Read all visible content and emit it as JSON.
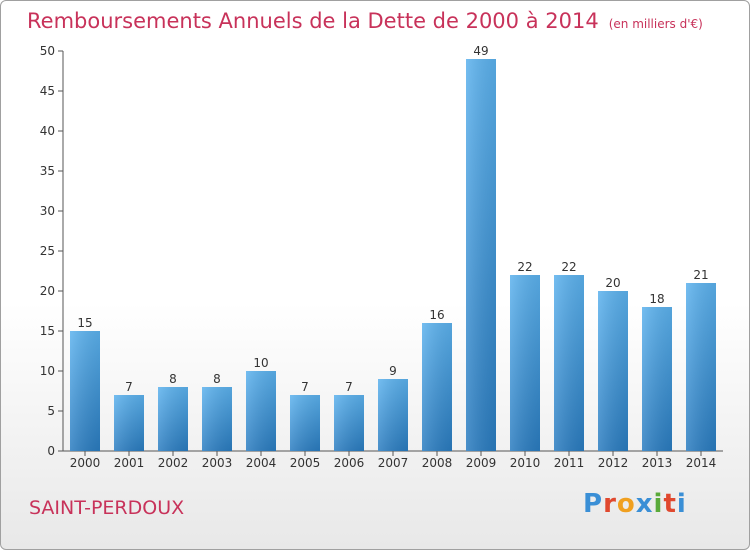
{
  "chart_data": {
    "type": "bar",
    "title": "Remboursements Annuels de la Dette de 2000 à 2014",
    "subtitle": "(en milliers d'€)",
    "categories": [
      "2000",
      "2001",
      "2002",
      "2003",
      "2004",
      "2005",
      "2006",
      "2007",
      "2008",
      "2009",
      "2010",
      "2011",
      "2012",
      "2013",
      "2014"
    ],
    "values": [
      15,
      7,
      8,
      8,
      10,
      7,
      7,
      9,
      16,
      49,
      22,
      22,
      20,
      18,
      21
    ],
    "ylim": [
      0,
      50
    ],
    "yticks": [
      0,
      5,
      10,
      15,
      20,
      25,
      30,
      35,
      40,
      45,
      50
    ],
    "grid": false,
    "bar_color": "#4da6e6"
  },
  "commune": "SAINT-PERDOUX",
  "logo": {
    "letters": [
      "P",
      "r",
      "o",
      "x",
      "i",
      "t",
      "i"
    ],
    "colors": [
      "#3a8fd6",
      "#e0482e",
      "#f0a020",
      "#3a8fd6",
      "#5aaa3a",
      "#e0482e",
      "#3a8fd6"
    ]
  }
}
